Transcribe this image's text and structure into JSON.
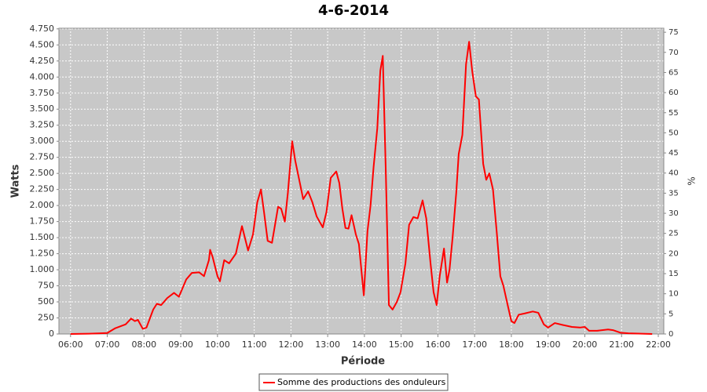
{
  "chart_data": {
    "type": "line",
    "title": "4-6-2014",
    "xlabel": "Période",
    "ylabel": "Watts",
    "y2label": "%",
    "x": [
      "06:00",
      "06:30",
      "07:00",
      "07:13",
      "07:30",
      "07:39",
      "07:45",
      "07:50",
      "07:58",
      "08:04",
      "08:15",
      "08:21",
      "08:28",
      "08:38",
      "08:49",
      "08:57",
      "09:09",
      "09:18",
      "09:30",
      "09:38",
      "09:46",
      "09:48",
      "09:52",
      "10:00",
      "10:04",
      "10:11",
      "10:19",
      "10:30",
      "10:40",
      "10:50",
      "10:58",
      "11:05",
      "11:11",
      "11:16",
      "11:22",
      "11:29",
      "11:39",
      "11:44",
      "11:50",
      "11:55",
      "12:02",
      "12:07",
      "12:20",
      "12:28",
      "12:35",
      "12:42",
      "12:52",
      "12:58",
      "13:05",
      "13:14",
      "13:19",
      "13:24",
      "13:29",
      "13:34",
      "13:39",
      "13:46",
      "13:51",
      "13:59",
      "14:05",
      "14:10",
      "14:15",
      "14:21",
      "14:26",
      "14:30",
      "14:35",
      "14:40",
      "14:46",
      "14:53",
      "14:59",
      "15:07",
      "15:13",
      "15:20",
      "15:27",
      "15:35",
      "15:41",
      "15:48",
      "15:53",
      "15:58",
      "16:03",
      "16:10",
      "16:15",
      "16:19",
      "16:24",
      "16:30",
      "16:34",
      "16:40",
      "16:46",
      "16:51",
      "16:56",
      "17:02",
      "17:07",
      "17:14",
      "17:19",
      "17:24",
      "17:30",
      "17:36",
      "17:42",
      "17:47",
      "17:54",
      "18:00",
      "18:05",
      "18:12",
      "18:22",
      "18:35",
      "18:44",
      "18:53",
      "19:00",
      "19:11",
      "19:24",
      "19:39",
      "19:52",
      "20:00",
      "20:07",
      "20:20",
      "20:38",
      "20:46",
      "20:58",
      "21:11",
      "21:50"
    ],
    "series": [
      {
        "name": "Somme des productions des onduleurs",
        "color": "#ff0000",
        "values": [
          0,
          5,
          15,
          90,
          150,
          240,
          200,
          220,
          80,
          100,
          380,
          470,
          450,
          560,
          640,
          580,
          850,
          950,
          960,
          900,
          1150,
          1310,
          1200,
          900,
          820,
          1150,
          1100,
          1250,
          1680,
          1300,
          1550,
          2050,
          2250,
          1900,
          1450,
          1420,
          1980,
          1950,
          1750,
          2200,
          3000,
          2700,
          2100,
          2220,
          2050,
          1830,
          1660,
          1900,
          2430,
          2530,
          2350,
          1950,
          1650,
          1640,
          1850,
          1550,
          1400,
          600,
          1600,
          2000,
          2600,
          3200,
          4100,
          4330,
          2500,
          450,
          380,
          500,
          650,
          1100,
          1700,
          1820,
          1800,
          2080,
          1800,
          1100,
          650,
          450,
          900,
          1330,
          800,
          1000,
          1500,
          2200,
          2800,
          3100,
          4200,
          4550,
          4100,
          3700,
          3650,
          2650,
          2400,
          2500,
          2250,
          1600,
          900,
          750,
          450,
          200,
          170,
          300,
          320,
          350,
          330,
          150,
          100,
          170,
          140,
          110,
          100,
          110,
          50,
          50,
          70,
          60,
          20,
          10,
          0
        ]
      }
    ],
    "xlim": [
      "05:41",
      "22:09"
    ],
    "xticks": [
      "06:00",
      "07:00",
      "08:00",
      "09:00",
      "10:00",
      "11:00",
      "12:00",
      "13:00",
      "14:00",
      "15:00",
      "16:00",
      "17:00",
      "18:00",
      "19:00",
      "20:00",
      "21:00",
      "22:00"
    ],
    "ylim": [
      0,
      4760
    ],
    "yticks": [
      0,
      250,
      500,
      750,
      {
        "value": 1000,
        "label": "1.000"
      },
      {
        "value": 1250,
        "label": "1.250"
      },
      {
        "value": 1500,
        "label": "1.500"
      },
      {
        "value": 1750,
        "label": "1.750"
      },
      {
        "value": 2000,
        "label": "2.000"
      },
      {
        "value": 2250,
        "label": "2.250"
      },
      {
        "value": 2500,
        "label": "2.500"
      },
      {
        "value": 2750,
        "label": "2.750"
      },
      {
        "value": 3000,
        "label": "3.000"
      },
      {
        "value": 3250,
        "label": "3.250"
      },
      {
        "value": 3500,
        "label": "3.500"
      },
      {
        "value": 3750,
        "label": "3.750"
      },
      {
        "value": 4000,
        "label": "4.000"
      },
      {
        "value": 4250,
        "label": "4.250"
      },
      {
        "value": 4500,
        "label": "4.500"
      },
      {
        "value": 4750,
        "label": "4.750"
      }
    ],
    "y2lim": [
      0,
      76
    ],
    "y2ticks": [
      0,
      5,
      10,
      15,
      20,
      25,
      30,
      35,
      40,
      45,
      50,
      55,
      60,
      65,
      70,
      75
    ],
    "grid": true
  }
}
